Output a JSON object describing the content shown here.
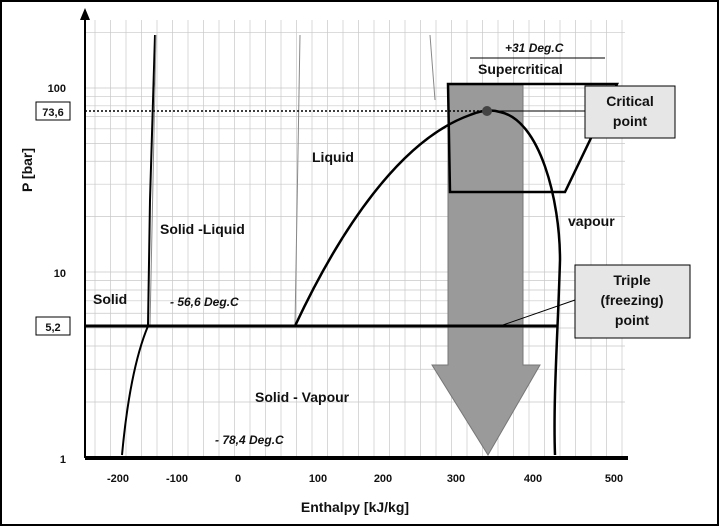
{
  "axes": {
    "y_label": "P [bar]",
    "x_label": "Enthalpy [kJ/kg]",
    "y_ticks": [
      "1",
      "10",
      "100"
    ],
    "x_ticks": [
      "-200",
      "-100",
      "0",
      "100",
      "200",
      "300",
      "400",
      "500"
    ],
    "markers": [
      "73,6",
      "5,2"
    ]
  },
  "regions": [
    "Solid",
    "Solid -Liquid",
    "Liquid",
    "Supercritical",
    "vapour",
    "Solid - Vapour"
  ],
  "temperatures": [
    "+31 Deg.C",
    "- 56,6 Deg.C",
    "- 78,4 Deg.C"
  ],
  "callouts": {
    "critical": [
      "Critical",
      "point"
    ],
    "triple": [
      "Triple",
      "(freezing)",
      "point"
    ]
  }
}
